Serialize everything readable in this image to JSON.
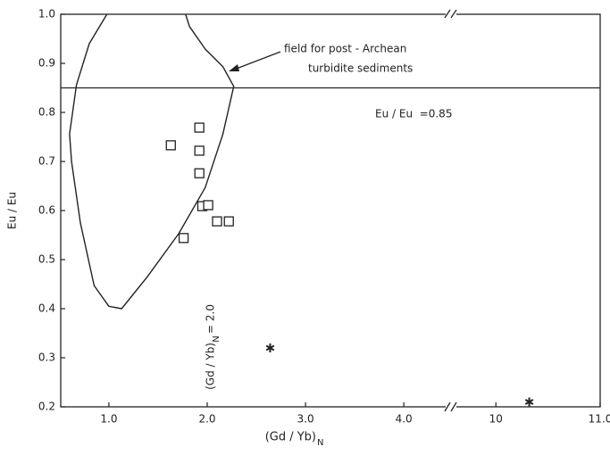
{
  "chart_data": {
    "type": "scatter",
    "xlabel": {
      "main": "(Gd / Yb)",
      "sub": "N"
    },
    "ylabel": "Eu / Eu",
    "x_segments": [
      {
        "xlim": [
          0.51,
          4.48
        ],
        "xticks": [
          {
            "value": 1,
            "label": "1.0"
          },
          {
            "value": 2,
            "label": "2.0"
          },
          {
            "value": 3,
            "label": "3.0"
          },
          {
            "value": 4,
            "label": "4.0"
          }
        ]
      },
      {
        "xlim": [
          9.57,
          11
        ],
        "xticks": [
          10,
          {
            "value": 11,
            "label": "11.0"
          }
        ]
      }
    ],
    "ylim": [
      0.2,
      1.0
    ],
    "yticks": [
      0.2,
      0.3,
      0.4,
      0.5,
      0.6,
      0.7,
      0.8,
      0.9,
      {
        "value": 1,
        "label": "1.0"
      }
    ],
    "series": [
      {
        "marker": "square",
        "color": "#222",
        "x": [
          1.63,
          1.92,
          1.92,
          1.92,
          1.95,
          2.01,
          2.1,
          2.22,
          1.76
        ],
        "y": [
          0.733,
          0.769,
          0.722,
          0.676,
          0.609,
          0.611,
          0.578,
          0.578,
          0.544
        ]
      },
      {
        "marker": "asterisk",
        "color": "#222",
        "x": [
          2.64,
          10.32
        ],
        "y": [
          0.32,
          0.21
        ]
      }
    ],
    "field_curve": {
      "x": [
        0.98,
        0.8,
        0.67,
        0.6,
        0.62,
        0.71,
        0.85,
        1.0,
        1.13,
        1.39,
        1.71,
        1.98,
        2.16,
        2.27,
        2.16,
        1.98,
        1.82,
        1.78
      ],
      "y": [
        1.0,
        0.94,
        0.856,
        0.756,
        0.7,
        0.575,
        0.447,
        0.405,
        0.4,
        0.465,
        0.553,
        0.647,
        0.756,
        0.853,
        0.893,
        0.929,
        0.975,
        1.0
      ]
    },
    "reference_line": {
      "y": 0.85,
      "label": "Eu / Eu  =0.85"
    },
    "field_label": [
      "field for post - Archean",
      "turbidite sediments"
    ],
    "vertical_label": {
      "main": "(Gd / Yb)",
      "sub": "N",
      "rest": "= 2.0"
    }
  }
}
